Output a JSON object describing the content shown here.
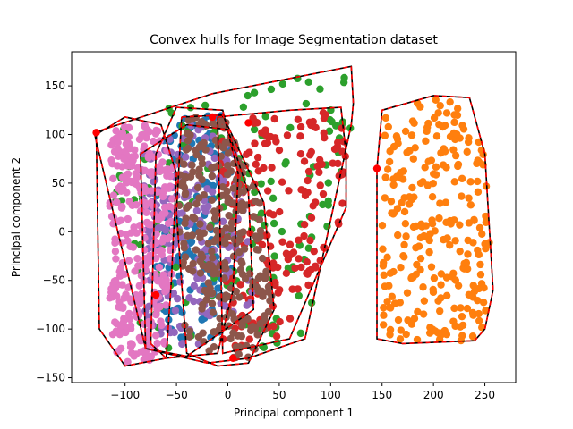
{
  "chart_data": {
    "type": "scatter",
    "title": "Convex hulls for Image Segmentation dataset",
    "xlabel": "Principal component 1",
    "ylabel": "Principal component 2",
    "xlim": [
      -152,
      280
    ],
    "ylim": [
      -155,
      185
    ],
    "xticks": [
      -100,
      -50,
      0,
      50,
      100,
      150,
      200,
      250
    ],
    "yticks": [
      -150,
      -100,
      -50,
      0,
      50,
      100,
      150
    ],
    "xtick_labels": [
      "−100",
      "−50",
      "0",
      "50",
      "100",
      "150",
      "200",
      "250"
    ],
    "ytick_labels": [
      "−150",
      "−100",
      "−50",
      "0",
      "50",
      "100",
      "150"
    ],
    "grid": false,
    "legend": "none",
    "series": [
      {
        "color": "#1f77b4",
        "region": {
          "x": [
            -70,
            10
          ],
          "y": [
            -110,
            120
          ]
        },
        "hull": [
          [
            -75,
            -115
          ],
          [
            -60,
            -130
          ],
          [
            -10,
            -125
          ],
          [
            5,
            -60
          ],
          [
            10,
            60
          ],
          [
            -5,
            125
          ],
          [
            -50,
            128
          ],
          [
            -70,
            80
          ],
          [
            -75,
            -115
          ]
        ]
      },
      {
        "color": "#ff7f0e",
        "region": {
          "x": [
            150,
            255
          ],
          "y": [
            -112,
            138
          ]
        },
        "hull": [
          [
            145,
            65
          ],
          [
            150,
            125
          ],
          [
            200,
            140
          ],
          [
            235,
            138
          ],
          [
            250,
            80
          ],
          [
            258,
            -60
          ],
          [
            250,
            -100
          ],
          [
            240,
            -112
          ],
          [
            170,
            -115
          ],
          [
            145,
            -110
          ],
          [
            145,
            65
          ]
        ]
      },
      {
        "color": "#2ca02c",
        "region": {
          "x": [
            -110,
            120
          ],
          "y": [
            -120,
            170
          ]
        },
        "hull": [
          [
            -130,
            102
          ],
          [
            -15,
            142
          ],
          [
            120,
            170
          ],
          [
            122,
            132
          ],
          [
            120,
            110
          ],
          [
            75,
            -110
          ],
          [
            20,
            -130
          ],
          [
            -20,
            -135
          ],
          [
            -80,
            -120
          ],
          [
            -130,
            102
          ]
        ]
      },
      {
        "color": "#d62728",
        "region": {
          "x": [
            -10,
            115
          ],
          "y": [
            -125,
            125
          ]
        },
        "hull": [
          [
            -10,
            118
          ],
          [
            60,
            125
          ],
          [
            110,
            128
          ],
          [
            115,
            80
          ],
          [
            115,
            25
          ],
          [
            60,
            -110
          ],
          [
            -5,
            -125
          ],
          [
            -10,
            118
          ]
        ]
      },
      {
        "color": "#9467bd",
        "region": {
          "x": [
            -85,
            25
          ],
          "y": [
            -125,
            110
          ]
        },
        "hull": [
          [
            -85,
            80
          ],
          [
            -40,
            110
          ],
          [
            0,
            105
          ],
          [
            20,
            40
          ],
          [
            25,
            -80
          ],
          [
            -40,
            -128
          ],
          [
            -80,
            -120
          ],
          [
            -85,
            80
          ]
        ]
      },
      {
        "color": "#8c564b",
        "region": {
          "x": [
            -50,
            45
          ],
          "y": [
            -130,
            120
          ]
        },
        "hull": [
          [
            -45,
            118
          ],
          [
            -5,
            120
          ],
          [
            35,
            30
          ],
          [
            45,
            -80
          ],
          [
            20,
            -135
          ],
          [
            -10,
            -138
          ],
          [
            -40,
            -125
          ],
          [
            -50,
            20
          ],
          [
            -45,
            118
          ]
        ]
      },
      {
        "color": "#e377c2",
        "region": {
          "x": [
            -115,
            -50
          ],
          "y": [
            -135,
            110
          ]
        },
        "hull": [
          [
            -128,
            100
          ],
          [
            -100,
            118
          ],
          [
            -65,
            110
          ],
          [
            -50,
            60
          ],
          [
            -55,
            -50
          ],
          [
            -60,
            -130
          ],
          [
            -100,
            -138
          ],
          [
            -125,
            -100
          ],
          [
            -128,
            100
          ]
        ]
      }
    ],
    "extreme_points_red": [
      [
        145,
        65
      ],
      [
        -128,
        102
      ],
      [
        -70,
        -65
      ],
      [
        20,
        112
      ],
      [
        -15,
        118
      ],
      [
        5,
        -130
      ]
    ]
  }
}
